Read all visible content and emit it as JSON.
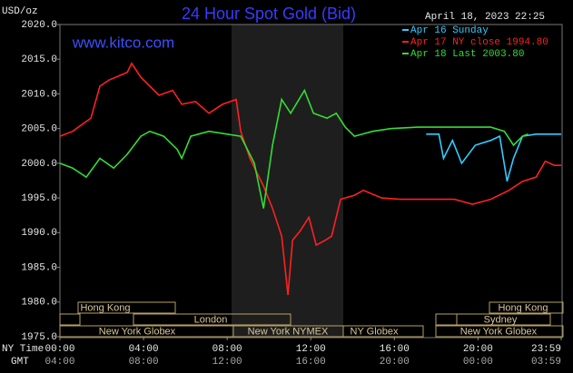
{
  "chart_data": {
    "type": "line",
    "title": "24 Hour Spot Gold (Bid)",
    "site": "www.kitco.com",
    "timestamp": "April 18, 2023 22:25",
    "y_label": "USD/oz",
    "x_label": "NY Time",
    "x2_label": "GMT",
    "xlim": [
      0,
      23.98
    ],
    "ylim": [
      1975,
      2020
    ],
    "yticks": [
      {
        "value": 2020,
        "label": "2020.0"
      },
      {
        "value": 2015,
        "label": "2015.0"
      },
      {
        "value": 2010,
        "label": "2010.0"
      },
      {
        "value": 2005,
        "label": "2005.0"
      },
      {
        "value": 2000,
        "label": "2000.0"
      },
      {
        "value": 1995,
        "label": "1995.0"
      },
      {
        "value": 1990,
        "label": "1990.0"
      },
      {
        "value": 1985,
        "label": "1985.0"
      },
      {
        "value": 1980,
        "label": "1980.0"
      },
      {
        "value": 1975,
        "label": "1975.0"
      }
    ],
    "xticks": [
      {
        "value": 0,
        "label": "00:00"
      },
      {
        "value": 4,
        "label": "04:00"
      },
      {
        "value": 8,
        "label": "08:00"
      },
      {
        "value": 12,
        "label": "12:00"
      },
      {
        "value": 16,
        "label": "16:00"
      },
      {
        "value": 20,
        "label": "20:00"
      },
      {
        "value": 23.98,
        "label": "23:59"
      }
    ],
    "x2ticks": [
      {
        "value": 0,
        "label": "04:00"
      },
      {
        "value": 4,
        "label": "08:00"
      },
      {
        "value": 8,
        "label": "12:00"
      },
      {
        "value": 12,
        "label": "16:00"
      },
      {
        "value": 16,
        "label": "20:00"
      },
      {
        "value": 20,
        "label": "00:00"
      },
      {
        "value": 23.98,
        "label": "03:59"
      }
    ],
    "sessions": [
      "Hong Kong",
      "London",
      "New York Globex",
      "New York NYMEX",
      "NY Globex",
      "Hong Kong",
      "Sydney",
      "New York Globex"
    ],
    "series": [
      {
        "name": "Apr 16 Sunday",
        "color": "#33ccff",
        "x": [
          17.52,
          18.13,
          18.35,
          18.78,
          19.22,
          19.87,
          20.61,
          21.04,
          21.39,
          21.7,
          22.13,
          22.78,
          23.98
        ],
        "values": [
          2004.2,
          2004.2,
          2000.7,
          2003.3,
          2000.0,
          2002.6,
          2003.3,
          2003.9,
          1997.4,
          2000.7,
          2003.9,
          2004.2,
          2004.2
        ]
      },
      {
        "name": "Apr 17 NY close 1994.80",
        "color": "#ff2020",
        "x": [
          0,
          0.61,
          1.48,
          1.91,
          2.35,
          3.22,
          3.43,
          3.87,
          4.3,
          4.74,
          5.39,
          5.83,
          6.48,
          7.13,
          7.78,
          8.43,
          8.65,
          9.09,
          9.74,
          10.17,
          10.61,
          10.91,
          11.13,
          11.48,
          11.91,
          12.26,
          12.7,
          13.0,
          13.43,
          14.09,
          14.52,
          15.39,
          16.26,
          18.0,
          18.87,
          19.74,
          20.61,
          21.48,
          22.13,
          22.78,
          23.22,
          23.65,
          23.98
        ],
        "values": [
          2003.9,
          2004.6,
          2006.5,
          2011.1,
          2012.0,
          2013.1,
          2014.4,
          2012.4,
          2011.1,
          2009.8,
          2010.5,
          2008.5,
          2008.9,
          2007.2,
          2008.5,
          2009.2,
          2004.6,
          2000.7,
          1996.7,
          1993.5,
          1989.5,
          1981.0,
          1988.9,
          1990.2,
          1992.2,
          1988.2,
          1988.9,
          1989.5,
          1994.8,
          1995.4,
          1996.1,
          1995.0,
          1994.8,
          1994.8,
          1994.8,
          1994.1,
          1994.8,
          1996.1,
          1997.4,
          1998.0,
          2000.3,
          1999.7,
          1999.7
        ]
      },
      {
        "name": "Apr 18 Last 2003.80",
        "color": "#33dd33",
        "x": [
          0,
          0.61,
          1.26,
          1.91,
          2.57,
          3.22,
          3.87,
          4.3,
          4.96,
          5.61,
          5.83,
          6.26,
          7.13,
          8.0,
          8.65,
          9.3,
          9.74,
          10.17,
          10.61,
          11.04,
          11.7,
          12.13,
          12.78,
          13.22,
          13.65,
          14.09,
          14.96,
          15.83,
          17.13,
          18.87,
          20.61,
          21.26,
          21.7,
          22.13,
          22.39
        ],
        "values": [
          2000.0,
          1999.3,
          1998.0,
          2000.7,
          1999.3,
          2001.3,
          2003.9,
          2004.6,
          2003.9,
          2002.0,
          2000.7,
          2003.9,
          2004.6,
          2004.2,
          2003.9,
          2000.0,
          1993.5,
          2002.6,
          2009.2,
          2007.2,
          2010.5,
          2007.2,
          2006.5,
          2007.2,
          2005.2,
          2003.9,
          2004.6,
          2005.0,
          2005.2,
          2005.2,
          2005.2,
          2004.6,
          2002.6,
          2003.9,
          2004.2
        ]
      }
    ],
    "grid": false
  }
}
